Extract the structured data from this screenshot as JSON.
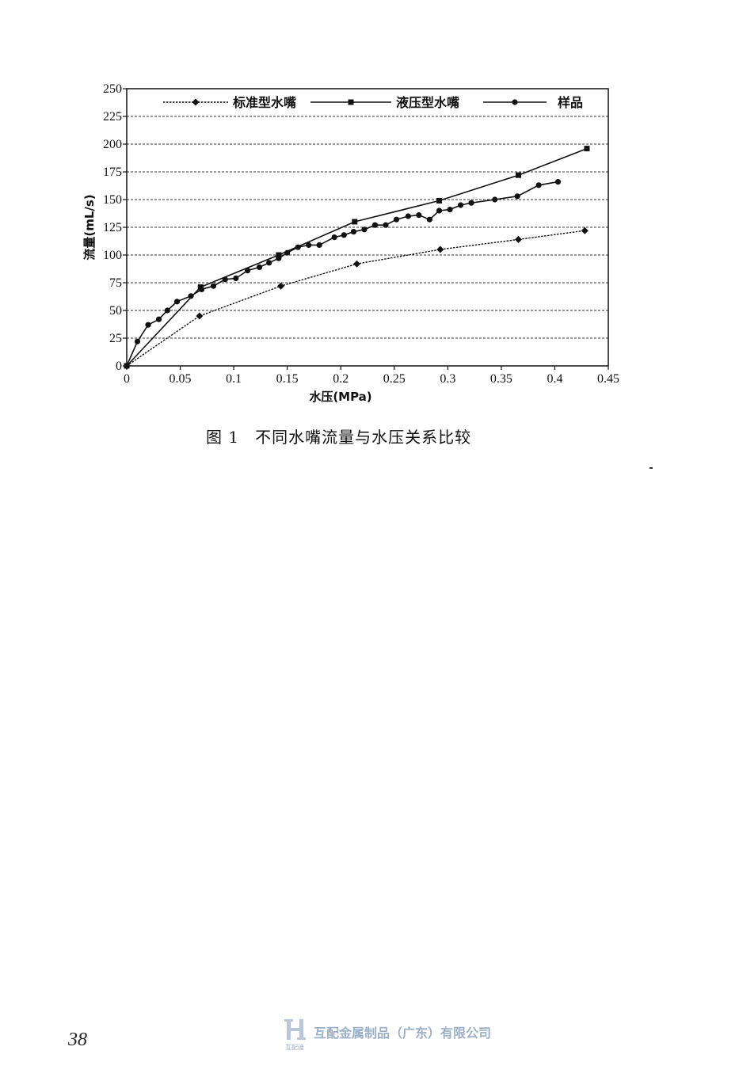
{
  "chart_data": {
    "type": "line",
    "xlabel": "水压(MPa)",
    "ylabel": "流量(mL/s)",
    "xlim": [
      0,
      0.45
    ],
    "ylim": [
      0,
      250
    ],
    "x_ticks": [
      "0",
      "0.05",
      "0.1",
      "0.15",
      "0.2",
      "0.25",
      "0.3",
      "0.35",
      "0.4",
      "0.45"
    ],
    "y_ticks": [
      "0",
      "25",
      "50",
      "75",
      "100",
      "125",
      "150",
      "175",
      "200",
      "225",
      "250"
    ],
    "grid": "horizontal dashed",
    "legend_position": "top",
    "series": [
      {
        "name": "标准型水嘴",
        "marker": "diamond",
        "line": "dotted",
        "points": [
          [
            0,
            0
          ],
          [
            0.068,
            45
          ],
          [
            0.144,
            72
          ],
          [
            0.215,
            92
          ],
          [
            0.293,
            105
          ],
          [
            0.366,
            114
          ],
          [
            0.428,
            122
          ]
        ]
      },
      {
        "name": "液压型水嘴",
        "marker": "square",
        "line": "solid",
        "points": [
          [
            0,
            0
          ],
          [
            0.069,
            71
          ],
          [
            0.142,
            100
          ],
          [
            0.213,
            130
          ],
          [
            0.292,
            149
          ],
          [
            0.366,
            172
          ],
          [
            0.43,
            196
          ]
        ]
      },
      {
        "name": "样品",
        "marker": "circle",
        "line": "solid",
        "points": [
          [
            0,
            0
          ],
          [
            0.01,
            22
          ],
          [
            0.02,
            37
          ],
          [
            0.03,
            42
          ],
          [
            0.038,
            50
          ],
          [
            0.047,
            58
          ],
          [
            0.06,
            63
          ],
          [
            0.07,
            69
          ],
          [
            0.081,
            72
          ],
          [
            0.092,
            78
          ],
          [
            0.102,
            79
          ],
          [
            0.113,
            86
          ],
          [
            0.124,
            89
          ],
          [
            0.133,
            93
          ],
          [
            0.142,
            97
          ],
          [
            0.15,
            102
          ],
          [
            0.16,
            107
          ],
          [
            0.17,
            109
          ],
          [
            0.18,
            109
          ],
          [
            0.194,
            116
          ],
          [
            0.203,
            118
          ],
          [
            0.212,
            121
          ],
          [
            0.222,
            123
          ],
          [
            0.232,
            127
          ],
          [
            0.242,
            127
          ],
          [
            0.252,
            132
          ],
          [
            0.263,
            135
          ],
          [
            0.273,
            136
          ],
          [
            0.283,
            132
          ],
          [
            0.292,
            140
          ],
          [
            0.302,
            141
          ],
          [
            0.312,
            145
          ],
          [
            0.322,
            147
          ],
          [
            0.344,
            150
          ],
          [
            0.365,
            153
          ],
          [
            0.385,
            163
          ],
          [
            0.403,
            166
          ]
        ]
      }
    ]
  },
  "caption": {
    "figure_number": "图 1",
    "text": "不同水嘴流量与水压关系比较"
  },
  "page_number": "38",
  "watermark": {
    "company": "互配金属制品（广东）有限公司",
    "logo_text": "互配迪"
  }
}
